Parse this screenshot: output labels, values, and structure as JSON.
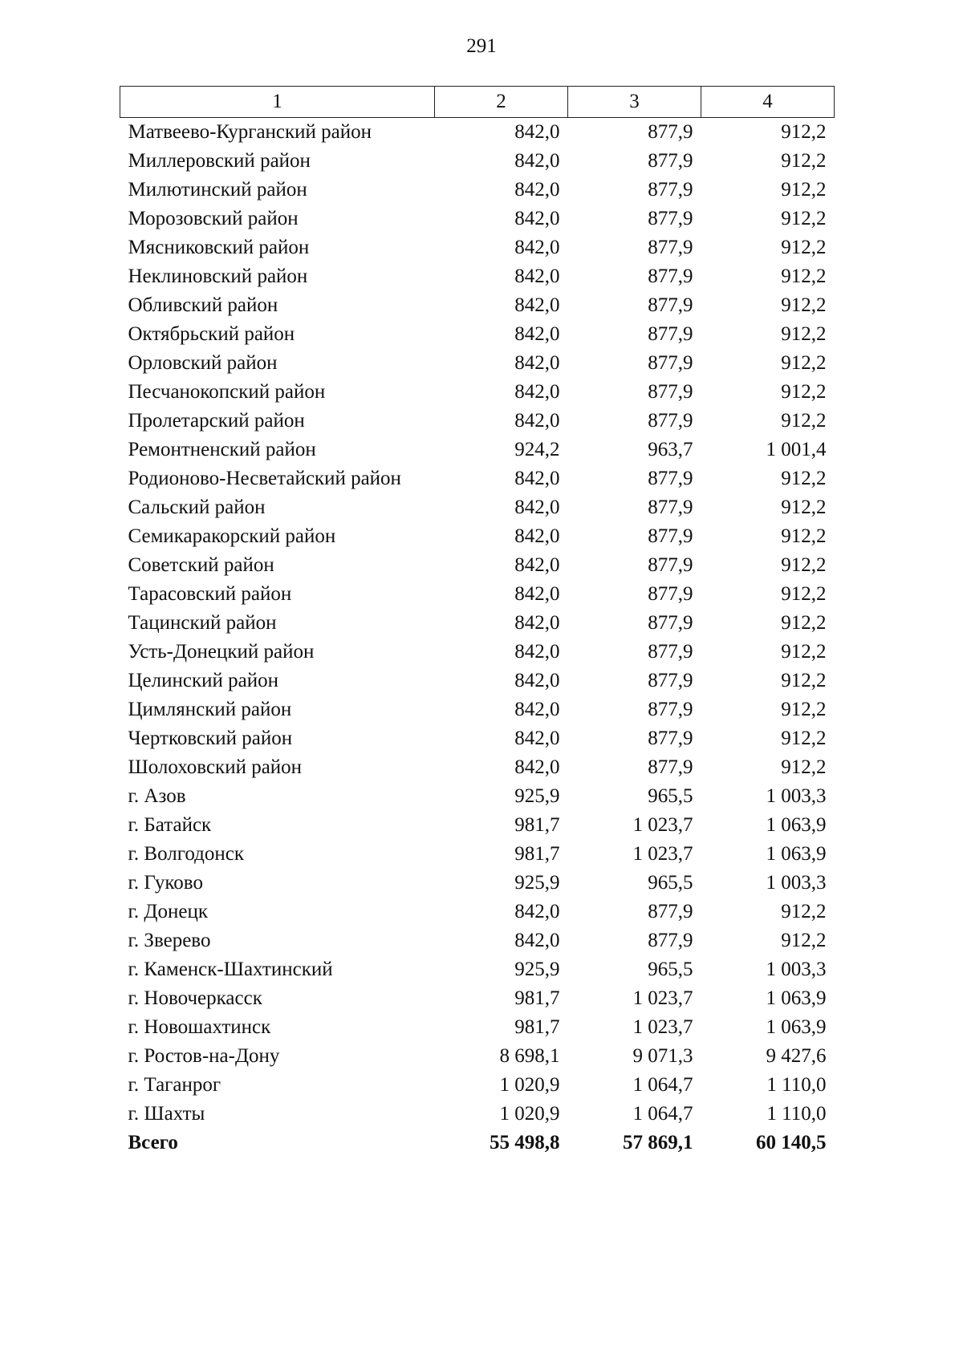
{
  "page_number": "291",
  "table": {
    "header": [
      "1",
      "2",
      "3",
      "4"
    ],
    "rows": [
      [
        "Матвеево-Курганский район",
        "842,0",
        "877,9",
        "912,2"
      ],
      [
        "Миллеровский район",
        "842,0",
        "877,9",
        "912,2"
      ],
      [
        "Милютинский район",
        "842,0",
        "877,9",
        "912,2"
      ],
      [
        "Морозовский район",
        "842,0",
        "877,9",
        "912,2"
      ],
      [
        "Мясниковский район",
        "842,0",
        "877,9",
        "912,2"
      ],
      [
        "Неклиновский район",
        "842,0",
        "877,9",
        "912,2"
      ],
      [
        "Обливский район",
        "842,0",
        "877,9",
        "912,2"
      ],
      [
        "Октябрьский район",
        "842,0",
        "877,9",
        "912,2"
      ],
      [
        "Орловский район",
        "842,0",
        "877,9",
        "912,2"
      ],
      [
        "Песчанокопский район",
        "842,0",
        "877,9",
        "912,2"
      ],
      [
        "Пролетарский район",
        "842,0",
        "877,9",
        "912,2"
      ],
      [
        "Ремонтненский район",
        "924,2",
        "963,7",
        "1 001,4"
      ],
      [
        "Родионово-Несветайский район",
        "842,0",
        "877,9",
        "912,2"
      ],
      [
        "Сальский район",
        "842,0",
        "877,9",
        "912,2"
      ],
      [
        "Семикаракорский район",
        "842,0",
        "877,9",
        "912,2"
      ],
      [
        "Советский район",
        "842,0",
        "877,9",
        "912,2"
      ],
      [
        "Тарасовский район",
        "842,0",
        "877,9",
        "912,2"
      ],
      [
        "Тацинский район",
        "842,0",
        "877,9",
        "912,2"
      ],
      [
        "Усть-Донецкий район",
        "842,0",
        "877,9",
        "912,2"
      ],
      [
        "Целинский район",
        "842,0",
        "877,9",
        "912,2"
      ],
      [
        "Цимлянский район",
        "842,0",
        "877,9",
        "912,2"
      ],
      [
        "Чертковский район",
        "842,0",
        "877,9",
        "912,2"
      ],
      [
        "Шолоховский район",
        "842,0",
        "877,9",
        "912,2"
      ],
      [
        "г. Азов",
        "925,9",
        "965,5",
        "1 003,3"
      ],
      [
        "г. Батайск",
        "981,7",
        "1 023,7",
        "1 063,9"
      ],
      [
        "г. Волгодонск",
        "981,7",
        "1 023,7",
        "1 063,9"
      ],
      [
        "г. Гуково",
        "925,9",
        "965,5",
        "1 003,3"
      ],
      [
        "г. Донецк",
        "842,0",
        "877,9",
        "912,2"
      ],
      [
        "г. Зверево",
        "842,0",
        "877,9",
        "912,2"
      ],
      [
        "г. Каменск-Шахтинский",
        "925,9",
        "965,5",
        "1 003,3"
      ],
      [
        "г. Новочеркасск",
        "981,7",
        "1 023,7",
        "1 063,9"
      ],
      [
        "г. Новошахтинск",
        "981,7",
        "1 023,7",
        "1 063,9"
      ],
      [
        "г. Ростов-на-Дону",
        "8 698,1",
        "9 071,3",
        "9 427,6"
      ],
      [
        "г. Таганрог",
        "1 020,9",
        "1 064,7",
        "1 110,0"
      ],
      [
        "г. Шахты",
        "1 020,9",
        "1 064,7",
        "1 110,0"
      ]
    ],
    "total": [
      "Всего",
      "55 498,8",
      "57 869,1",
      "60 140,5"
    ]
  }
}
